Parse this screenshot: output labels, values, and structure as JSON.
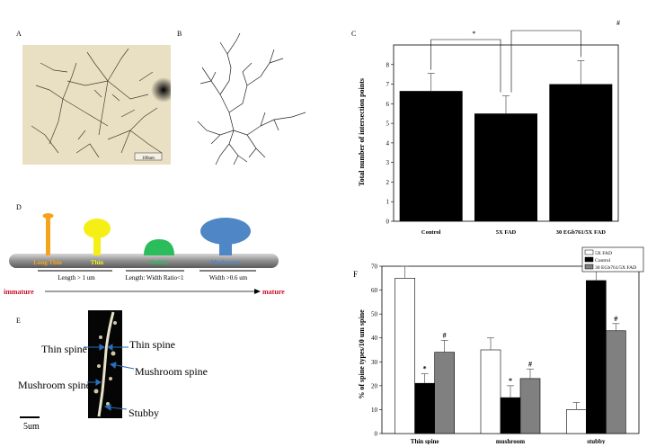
{
  "panels": {
    "a": {
      "label": "A",
      "scale_bar": "100um"
    },
    "b": {
      "label": "B"
    },
    "c": {
      "label": "C"
    },
    "d": {
      "label": "D",
      "shapes": [
        "Long Thin",
        "Thin",
        "Stubby",
        "Mushroom"
      ],
      "criteria": [
        "Length > 1 um",
        "Length: Width Ratio<1",
        "Width >0.6 um"
      ],
      "immature": "immature",
      "mature": "mature",
      "colors": {
        "long_thin": "#f5a31a",
        "thin": "#f5ef16",
        "stubby": "#2bbd5c",
        "mushroom": "#4f86c6",
        "immature": "#c8102e",
        "mature": "#c8102e"
      }
    },
    "e": {
      "label": "E",
      "annotations": [
        "Thin spine",
        "Thin spine",
        "Mushroom spine",
        "Mushroom spine",
        "Stubby"
      ],
      "scale_label": "5um"
    },
    "f": {
      "label": "F"
    }
  },
  "chart_data": [
    {
      "type": "bar",
      "panel": "C",
      "categories": [
        "Control",
        "5X FAD",
        "30 EGb761/5X FAD"
      ],
      "values": [
        6.65,
        5.5,
        7.0
      ],
      "errors": [
        0.9,
        0.9,
        1.2
      ],
      "ylabel": "Total number of intersection points",
      "ylim": [
        0,
        9
      ],
      "yticks": [
        "0",
        "1",
        "2",
        "3",
        "4",
        "5",
        "6",
        "7",
        "8"
      ],
      "significance": [
        "*",
        "#"
      ],
      "bar_color": "#000000"
    },
    {
      "type": "bar",
      "panel": "F",
      "categories": [
        "Thin spine",
        "mushroom",
        "stubby"
      ],
      "series": [
        {
          "name": "5X FAD",
          "values": [
            65,
            35,
            10
          ],
          "errors": [
            5,
            5,
            3
          ],
          "color": "#ffffff",
          "marks": [
            "",
            "",
            ""
          ]
        },
        {
          "name": "Control",
          "values": [
            21,
            15,
            64
          ],
          "errors": [
            4,
            5,
            4
          ],
          "color": "#000000",
          "marks": [
            "*",
            "*",
            "*"
          ]
        },
        {
          "name": "30 EGb761/5X FAD",
          "values": [
            34,
            23,
            43
          ],
          "errors": [
            5,
            4,
            3
          ],
          "color": "#808080",
          "marks": [
            "#",
            "#",
            "#"
          ]
        }
      ],
      "ylabel": "% of spine types/10 um spine",
      "ylim": [
        0,
        70
      ],
      "yticks": [
        "0",
        "10",
        "20",
        "30",
        "40",
        "50",
        "60",
        "70"
      ]
    }
  ]
}
